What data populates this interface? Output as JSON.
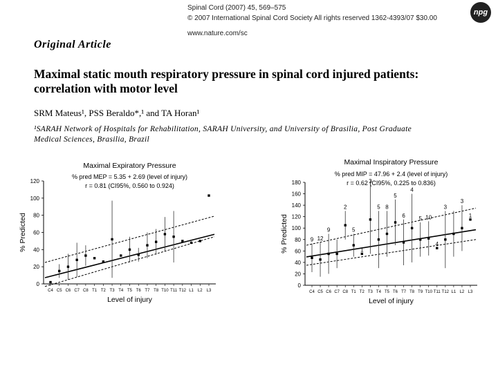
{
  "header": {
    "journal_line1": "Spinal Cord (2007) 45, 569–575",
    "journal_line2": "© 2007 International Spinal Cord Society   All rights reserved 1362-4393/07 $30.00",
    "journal_line3": "www.nature.com/sc",
    "logo_text": "npg"
  },
  "article": {
    "type": "Original Article",
    "title_line1": "Maximal static mouth respiratory pressure in spinal cord injured patients:",
    "title_line2": "correlation with motor level",
    "authors": "SRM Mateus¹, PSS Beraldo*,¹ and TA Horan¹",
    "affiliation_line1": "¹SARAH Network of Hospitals for Rehabilitation, SARAH University, and University of Brasilia, Post Graduate",
    "affiliation_line2": "Medical Sciences, Brasilia, Brazil"
  },
  "chart_data": [
    {
      "type": "scatter",
      "title": "Maximal Expiratory Pressure",
      "equation": "% pred MEP = 5.35 + 2.69 (level of injury)",
      "stats": "r = 0.81 (CI95%, 0.560 to 0.924)",
      "xlabel": "Level of injury",
      "ylabel": "% Predicted",
      "ylim": [
        0,
        120
      ],
      "yticks": [
        "0",
        "20",
        "40",
        "60",
        "80",
        "100",
        "120"
      ],
      "categories": [
        "C4",
        "C5",
        "C6",
        "C7",
        "C8",
        "T1",
        "T2",
        "T3",
        "T4",
        "T5",
        "T6",
        "T7",
        "T8",
        "T10",
        "T11",
        "T12",
        "L1",
        "L2",
        "L3"
      ],
      "means": [
        2,
        15,
        20,
        28,
        33,
        30,
        26,
        52,
        33,
        40,
        34,
        45,
        49,
        58,
        55,
        50,
        48,
        50,
        103
      ],
      "errors": [
        0,
        8,
        15,
        20,
        12,
        0,
        0,
        45,
        0,
        15,
        8,
        15,
        15,
        20,
        30,
        0,
        0,
        0,
        0
      ],
      "fit": {
        "intercept": 5.35,
        "slope": 2.69
      },
      "ci_band": {
        "lower_start": -3,
        "lower_end": 55,
        "upper_start": 25,
        "upper_end": 79
      }
    },
    {
      "type": "scatter",
      "title": "Maximal Inspiratory Pressure",
      "equation": "% pred MIP = 47.96 + 2.4 (level of injury)",
      "stats": "r = 0.62 (CI95%, 0.225 to 0.836)",
      "xlabel": "Level of injury",
      "ylabel": "% Predicted",
      "ylim": [
        0,
        180
      ],
      "yticks": [
        "0",
        "20",
        "40",
        "60",
        "80",
        "100",
        "120",
        "140",
        "160",
        "180"
      ],
      "categories": [
        "C4",
        "C5",
        "C6",
        "C7",
        "C8",
        "T1",
        "T2",
        "T3",
        "T4",
        "T5",
        "T6",
        "T7",
        "T8",
        "T9",
        "T10",
        "T11",
        "T12",
        "L1",
        "L2",
        "L3"
      ],
      "means": [
        48,
        45,
        55,
        55,
        105,
        70,
        55,
        115,
        80,
        90,
        110,
        75,
        100,
        80,
        82,
        65,
        80,
        90,
        100,
        115
      ],
      "errors": [
        25,
        30,
        35,
        25,
        25,
        20,
        0,
        60,
        50,
        40,
        40,
        40,
        60,
        30,
        30,
        0,
        50,
        40,
        40,
        0
      ],
      "point_labels": [
        "9",
        "12",
        "9",
        "",
        "2",
        "5",
        "1",
        "3",
        "5",
        "8",
        "5",
        "6",
        "4",
        "5",
        "10",
        "4",
        "3",
        "",
        "3",
        "1"
      ],
      "fit": {
        "intercept": 47.96,
        "slope": 2.4
      },
      "ci_band": {
        "lower_start": 35,
        "lower_end": 80,
        "upper_start": 70,
        "upper_end": 135
      }
    }
  ]
}
